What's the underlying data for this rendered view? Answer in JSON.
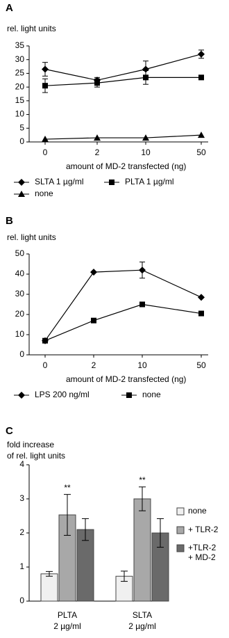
{
  "chart_data": [
    {
      "type": "line",
      "panel_label": "A",
      "y_label": "rel. light units",
      "x_label": "amount of MD-2 transfected (ng)",
      "categories": [
        "0",
        "2",
        "10",
        "50"
      ],
      "ylim": [
        0,
        35
      ],
      "yticks": [
        0,
        5,
        10,
        15,
        20,
        25,
        30,
        35
      ],
      "series": [
        {
          "name": "SLTA 1 µg/ml",
          "color": "#000000",
          "marker": "diamond",
          "values": [
            26.5,
            22.5,
            26.5,
            32
          ],
          "errors": [
            2.5,
            1,
            3,
            1.5
          ]
        },
        {
          "name": "PLTA 1 µg/ml",
          "color": "#000000",
          "marker": "square",
          "values": [
            20.5,
            21.5,
            23.5,
            23.5
          ],
          "errors": [
            2.5,
            1.5,
            2.5,
            0.5
          ]
        },
        {
          "name": "none",
          "color": "#000000",
          "marker": "triangle",
          "values": [
            1,
            1.5,
            1.5,
            2.5
          ],
          "errors": [
            null,
            null,
            null,
            null
          ]
        }
      ]
    },
    {
      "type": "line",
      "panel_label": "B",
      "y_label": "rel. light units",
      "x_label": "amount of MD-2 transfected (ng)",
      "categories": [
        "0",
        "2",
        "10",
        "50"
      ],
      "ylim": [
        0,
        50
      ],
      "yticks": [
        0,
        10,
        20,
        30,
        40,
        50
      ],
      "series": [
        {
          "name": "LPS 200 ng/ml",
          "color": "#000000",
          "marker": "diamond",
          "values": [
            7,
            41,
            42,
            28.5
          ],
          "errors": [
            null,
            null,
            4,
            null
          ]
        },
        {
          "name": "none",
          "color": "#000000",
          "marker": "square",
          "values": [
            7,
            17,
            25,
            20.5
          ],
          "errors": [
            null,
            null,
            null,
            null
          ]
        }
      ]
    },
    {
      "type": "bar",
      "panel_label": "C",
      "y_label": [
        "fold increase",
        "of rel. light units"
      ],
      "categories": [
        [
          "PLTA",
          "2 µg/ml"
        ],
        [
          "SLTA",
          "2 µg/ml"
        ]
      ],
      "ylim": [
        0,
        4
      ],
      "yticks": [
        0,
        1,
        2,
        3,
        4
      ],
      "annotations": [
        "**",
        "**"
      ],
      "series": [
        {
          "name": [
            "none"
          ],
          "color": "#f0f0f0",
          "values": [
            0.8,
            0.73
          ],
          "errors": [
            0.07,
            0.15
          ]
        },
        {
          "name": [
            "+ TLR-2"
          ],
          "color": "#a8a8a8",
          "values": [
            2.53,
            3.0
          ],
          "errors": [
            0.6,
            0.35
          ]
        },
        {
          "name": [
            "+TLR-2",
            "+ MD-2"
          ],
          "color": "#6a6a6a",
          "values": [
            2.1,
            2.0
          ],
          "errors": [
            0.32,
            0.42
          ]
        }
      ]
    }
  ]
}
